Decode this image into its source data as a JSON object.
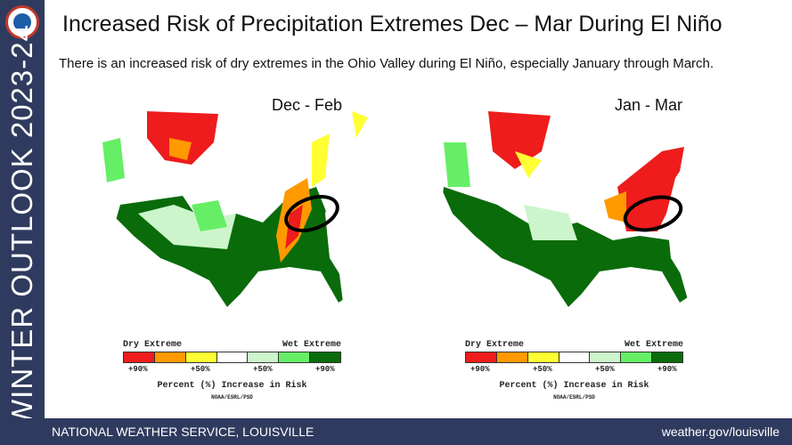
{
  "sidebar": {
    "vertical_text": "WINTER OUTLOOK 2023-24",
    "logo": "nws-logo"
  },
  "title": "Increased Risk of Precipitation Extremes Dec – Mar During El Niño",
  "subtitle": "There is an increased risk of dry extremes in the Ohio Valley during El Niño, especially January through March.",
  "maps": [
    {
      "period": "Dec - Feb"
    },
    {
      "period": "Jan - Mar"
    }
  ],
  "legend": {
    "dry": "Dry Extreme",
    "wet": "Wet Extreme",
    "colors": [
      "#ee1c1c",
      "#ff9900",
      "#ffff33",
      "#ffffff",
      "#ccf5cc",
      "#66ee66",
      "#0a6b0a"
    ],
    "ticks": [
      "+90%",
      "+50%",
      "+50%",
      "+90%"
    ],
    "caption": "Percent (%) Increase in Risk",
    "source": "NOAA/ESRL/PSD"
  },
  "footer": {
    "left": "NATIONAL WEATHER SERVICE, LOUISVILLE",
    "right": "weather.gov/louisville"
  }
}
